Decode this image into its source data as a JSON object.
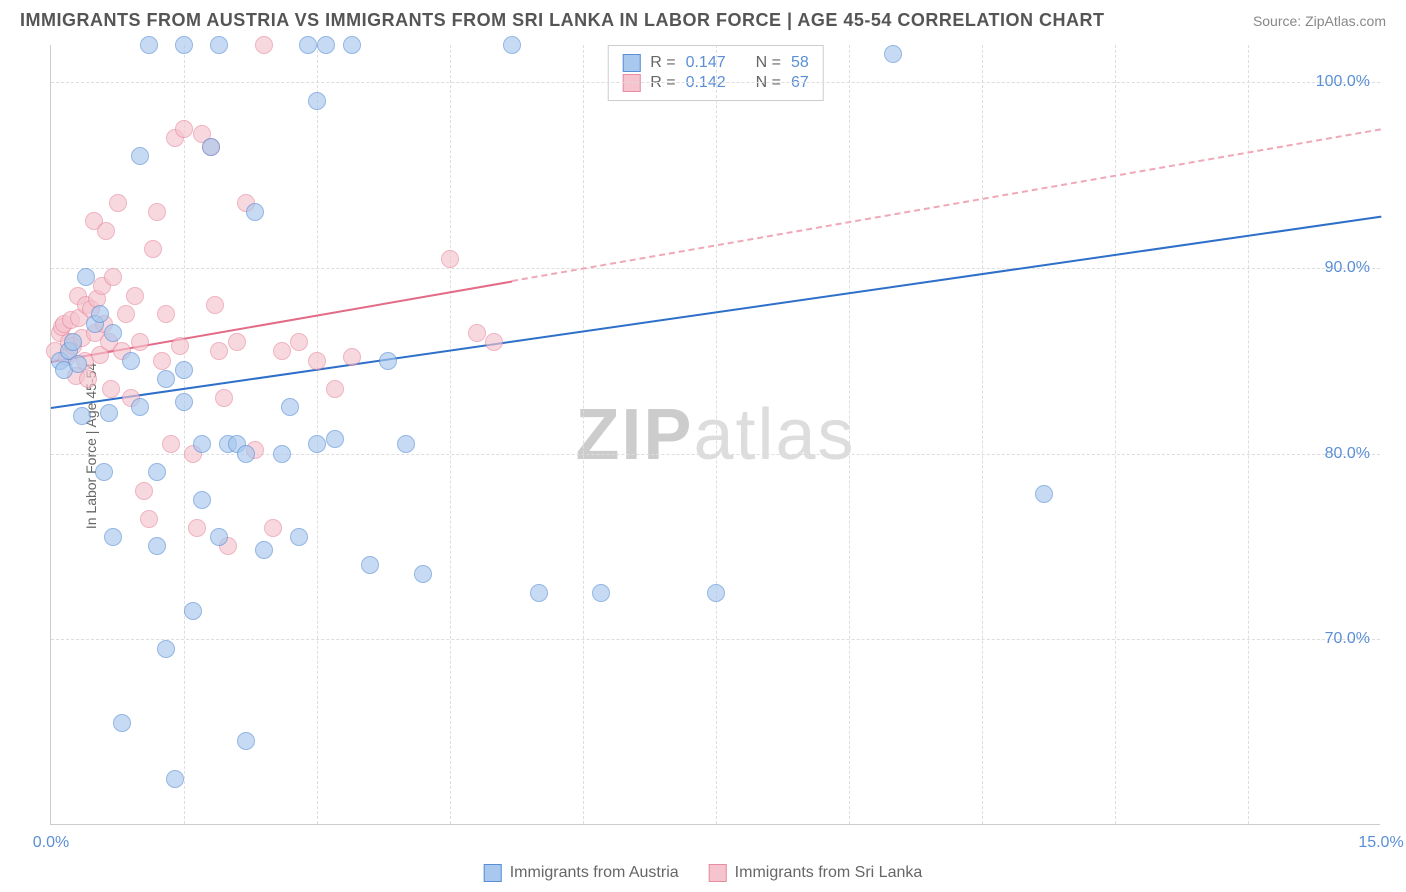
{
  "header": {
    "title": "IMMIGRANTS FROM AUSTRIA VS IMMIGRANTS FROM SRI LANKA IN LABOR FORCE | AGE 45-54 CORRELATION CHART",
    "source": "Source: ZipAtlas.com"
  },
  "watermark": {
    "bold": "ZIP",
    "rest": "atlas"
  },
  "chart": {
    "type": "scatter",
    "ylabel": "In Labor Force | Age 45-54",
    "xlim": [
      0,
      15
    ],
    "ylim": [
      60,
      102
    ],
    "yticks": [
      {
        "v": 70,
        "label": "70.0%"
      },
      {
        "v": 80,
        "label": "80.0%"
      },
      {
        "v": 90,
        "label": "90.0%"
      },
      {
        "v": 100,
        "label": "100.0%"
      }
    ],
    "xticks": [
      {
        "v": 0,
        "label": "0.0%"
      },
      {
        "v": 15,
        "label": "15.0%"
      }
    ],
    "xgrid": [
      1.5,
      3.0,
      4.5,
      6.0,
      7.5,
      9.0,
      10.5,
      12.0,
      13.5
    ],
    "background_color": "#ffffff",
    "grid_color": "#dddddd",
    "axis_color": "#cccccc",
    "tick_color": "#5a8fd6",
    "label_color": "#666666",
    "marker_radius": 9,
    "marker_opacity": 0.65,
    "series": {
      "blue": {
        "name": "Immigrants from Austria",
        "fill": "#a8c8ed",
        "stroke": "#5a8fd6",
        "line_color": "#2d6fc9",
        "R": "0.147",
        "N": "58",
        "trend": {
          "x1": 0,
          "y1": 82.5,
          "x2": 15,
          "y2": 92.8,
          "dashed_from": null
        },
        "points": [
          [
            0.1,
            85.0
          ],
          [
            0.15,
            84.5
          ],
          [
            0.2,
            85.5
          ],
          [
            0.25,
            86.0
          ],
          [
            0.3,
            84.8
          ],
          [
            0.35,
            82.0
          ],
          [
            0.4,
            89.5
          ],
          [
            0.5,
            87.0
          ],
          [
            0.55,
            87.5
          ],
          [
            0.6,
            79.0
          ],
          [
            0.65,
            82.2
          ],
          [
            0.7,
            86.5
          ],
          [
            0.7,
            75.5
          ],
          [
            0.8,
            65.5
          ],
          [
            0.9,
            85.0
          ],
          [
            1.0,
            96.0
          ],
          [
            1.0,
            82.5
          ],
          [
            1.1,
            102.0
          ],
          [
            1.2,
            79.0
          ],
          [
            1.2,
            75.0
          ],
          [
            1.3,
            84.0
          ],
          [
            1.3,
            69.5
          ],
          [
            1.4,
            62.5
          ],
          [
            1.5,
            84.5
          ],
          [
            1.5,
            82.8
          ],
          [
            1.5,
            102.0
          ],
          [
            1.6,
            71.5
          ],
          [
            1.7,
            80.5
          ],
          [
            1.7,
            77.5
          ],
          [
            1.8,
            96.5
          ],
          [
            1.9,
            75.5
          ],
          [
            1.9,
            102.0
          ],
          [
            2.0,
            80.5
          ],
          [
            2.1,
            80.5
          ],
          [
            2.2,
            80.0
          ],
          [
            2.2,
            64.5
          ],
          [
            2.3,
            93.0
          ],
          [
            2.4,
            74.8
          ],
          [
            2.6,
            80.0
          ],
          [
            2.7,
            82.5
          ],
          [
            2.8,
            75.5
          ],
          [
            2.9,
            102.0
          ],
          [
            3.0,
            80.5
          ],
          [
            3.0,
            99.0
          ],
          [
            3.1,
            102.0
          ],
          [
            3.2,
            80.8
          ],
          [
            3.4,
            102.0
          ],
          [
            3.6,
            74.0
          ],
          [
            3.8,
            85.0
          ],
          [
            4.0,
            80.5
          ],
          [
            4.2,
            73.5
          ],
          [
            5.2,
            102.0
          ],
          [
            5.5,
            72.5
          ],
          [
            6.2,
            72.5
          ],
          [
            7.5,
            72.5
          ],
          [
            9.5,
            101.5
          ],
          [
            11.2,
            77.8
          ]
        ]
      },
      "pink": {
        "name": "Immigrants from Sri Lanka",
        "fill": "#f5c4ce",
        "stroke": "#e88ca0",
        "line_color": "#e36b87",
        "R": "0.142",
        "N": "67",
        "trend": {
          "x1": 0,
          "y1": 85.0,
          "x2": 15,
          "y2": 97.5,
          "dashed_from": 5.2
        },
        "points": [
          [
            0.05,
            85.5
          ],
          [
            0.1,
            86.5
          ],
          [
            0.12,
            86.8
          ],
          [
            0.15,
            87.0
          ],
          [
            0.18,
            85.2
          ],
          [
            0.2,
            86.0
          ],
          [
            0.22,
            87.2
          ],
          [
            0.25,
            85.8
          ],
          [
            0.28,
            84.2
          ],
          [
            0.3,
            88.5
          ],
          [
            0.32,
            87.3
          ],
          [
            0.35,
            86.2
          ],
          [
            0.38,
            85.0
          ],
          [
            0.4,
            88.0
          ],
          [
            0.42,
            84.0
          ],
          [
            0.45,
            87.8
          ],
          [
            0.48,
            92.5
          ],
          [
            0.5,
            86.5
          ],
          [
            0.52,
            88.3
          ],
          [
            0.55,
            85.3
          ],
          [
            0.58,
            89.0
          ],
          [
            0.6,
            87.0
          ],
          [
            0.62,
            92.0
          ],
          [
            0.65,
            86.0
          ],
          [
            0.68,
            83.5
          ],
          [
            0.7,
            89.5
          ],
          [
            0.75,
            93.5
          ],
          [
            0.8,
            85.5
          ],
          [
            0.85,
            87.5
          ],
          [
            0.9,
            83.0
          ],
          [
            0.95,
            88.5
          ],
          [
            1.0,
            86.0
          ],
          [
            1.05,
            78.0
          ],
          [
            1.1,
            76.5
          ],
          [
            1.15,
            91.0
          ],
          [
            1.2,
            93.0
          ],
          [
            1.25,
            85.0
          ],
          [
            1.3,
            87.5
          ],
          [
            1.35,
            80.5
          ],
          [
            1.4,
            97.0
          ],
          [
            1.45,
            85.8
          ],
          [
            1.5,
            97.5
          ],
          [
            1.6,
            80.0
          ],
          [
            1.65,
            76.0
          ],
          [
            1.7,
            97.2
          ],
          [
            1.8,
            96.5
          ],
          [
            1.85,
            88.0
          ],
          [
            1.9,
            85.5
          ],
          [
            1.95,
            83.0
          ],
          [
            2.0,
            75.0
          ],
          [
            2.1,
            86.0
          ],
          [
            2.2,
            93.5
          ],
          [
            2.3,
            80.2
          ],
          [
            2.4,
            102.0
          ],
          [
            2.5,
            76.0
          ],
          [
            2.6,
            85.5
          ],
          [
            2.8,
            86.0
          ],
          [
            3.0,
            85.0
          ],
          [
            3.2,
            83.5
          ],
          [
            3.4,
            85.2
          ],
          [
            4.5,
            90.5
          ],
          [
            4.8,
            86.5
          ],
          [
            5.0,
            86.0
          ]
        ]
      }
    }
  },
  "stats_legend": {
    "rows": [
      {
        "color": "blue",
        "r_label": "R =",
        "r_val": "0.147",
        "n_label": "N =",
        "n_val": "58"
      },
      {
        "color": "pink",
        "r_label": "R =",
        "r_val": "0.142",
        "n_label": "N =",
        "n_val": "67"
      }
    ]
  },
  "bottom_legend": {
    "items": [
      {
        "color": "blue",
        "label": "Immigrants from Austria"
      },
      {
        "color": "pink",
        "label": "Immigrants from Sri Lanka"
      }
    ]
  }
}
